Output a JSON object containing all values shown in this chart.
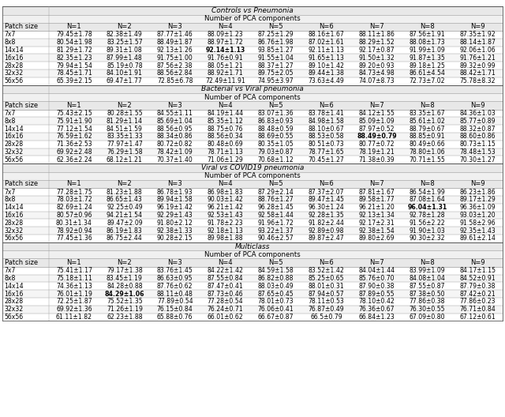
{
  "sections": [
    {
      "section_title": "Controls vs Pneumonia",
      "subsection_title": "Number of PCA components",
      "headers": [
        "Patch size",
        "N=1",
        "N=2",
        "N=3",
        "N=4",
        "N=5",
        "N=6",
        "N=7",
        "N=8",
        "N=9"
      ],
      "rows": [
        [
          "7x7",
          "79.45±1.78",
          "82.38±1.49",
          "87.77±1.46",
          "88.09±1.23",
          "87.25±1.29",
          "88.16±1.67",
          "88.11±1.86",
          "87.56±1.91",
          "87.35±1.92"
        ],
        [
          "8x8",
          "80.54±1.98",
          "83.25±1.57",
          "88.49±1.87",
          "88.97±1.72",
          "86.76±1.98",
          "87.02±1.61",
          "88.29±1.52",
          "88.08±1.73",
          "88.14±1.87"
        ],
        [
          "14x14",
          "81.29±1.72",
          "89.31±1.08",
          "92.13±1.26",
          "92.14±1.13",
          "93.85±1.27",
          "92.11±1.13",
          "92.17±0.87",
          "91.99±1.09",
          "92.06±1.06"
        ],
        [
          "16x16",
          "82.35±1.23",
          "87.99±1.48",
          "91.75±1.00",
          "91.76±0.91",
          "91.55±1.04",
          "91.65±1.13",
          "91.50±1.32",
          "91.87±1.35",
          "91.76±1.21"
        ],
        [
          "28x28",
          "79.94±1.54",
          "85.19±0.78",
          "87.56±2.38",
          "88.05±1.21",
          "88.37±1.27",
          "89.10±1.42",
          "89.20±0.93",
          "89.18±1.25",
          "89.32±0.99"
        ],
        [
          "32x32",
          "78.45±1.71",
          "84.10±1.91",
          "88.56±2.84",
          "88.92±1.71",
          "89.75±2.05",
          "89.44±1.38",
          "84.73±4.98",
          "86.61±4.54",
          "88.42±1.71"
        ],
        [
          "56x56",
          "65.39±2.15",
          "69.47±1.77",
          "72.85±6.78",
          "72.49±11.91",
          "74.95±3.97",
          "73.63±4.49",
          "74.07±8.73",
          "72.73±7.02",
          "75.78±8.32"
        ]
      ],
      "bold_row": 2,
      "bold_col": 4
    },
    {
      "section_title": "Bacterial vs Viral pneumonia",
      "subsection_title": "Number of PCA components",
      "headers": [
        "Patch size",
        "N=1",
        "N=2",
        "N=3",
        "N=4",
        "N=5",
        "N=6",
        "N=7",
        "N=8",
        "N=9"
      ],
      "rows": [
        [
          "7x7",
          "75.43±2.15",
          "80.28±1.55",
          "84.55±1.11",
          "84.19±1.44",
          "83.07±1.36",
          "83.78±1.41",
          "84.12±1.55",
          "83.35±1.67",
          "84.36±1.03"
        ],
        [
          "8x8",
          "75.91±1.90",
          "81.29±1.14",
          "85.69±1.04",
          "85.35±1.12",
          "86.83±0.93",
          "84.98±1.58",
          "85.09±1.09",
          "85.61±1.02",
          "85.77±0.89"
        ],
        [
          "14x14",
          "77.12±1.54",
          "84.51±1.59",
          "88.56±0.95",
          "88.75±0.76",
          "88.48±0.59",
          "88.10±0.67",
          "87.97±0.52",
          "88.79±0.67",
          "88.32±0.87"
        ],
        [
          "16x16",
          "76.59±1.62",
          "83.35±1.33",
          "88.34±0.86",
          "88.56±0.34",
          "88.69±0.55",
          "88.53±0.58",
          "88.49±0.79",
          "88.85±0.91",
          "88.60±0.86"
        ],
        [
          "28x28",
          "71.36±2.53",
          "77.97±1.47",
          "80.72±0.82",
          "80.48±0.69",
          "80.35±1.05",
          "80.51±0.73",
          "80.77±0.72",
          "80.49±0.66",
          "80.73±1.15"
        ],
        [
          "32x32",
          "69.92±2.48",
          "76.29±1.58",
          "78.42±1.09",
          "78.71±1.13",
          "79.03±0.87",
          "78.77±1.65",
          "78.19±1.21",
          "78.80±1.06",
          "78.48±1.53"
        ],
        [
          "56x56",
          "62.36±2.24",
          "68.12±1.21",
          "70.37±1.40",
          "71.06±1.29",
          "70.68±1.12",
          "70.45±1.27",
          "71.38±0.39",
          "70.71±1.55",
          "70.30±1.27"
        ]
      ],
      "bold_row": 3,
      "bold_col": 7
    },
    {
      "section_title": "Viral vs COVID19 pneumonia",
      "subsection_title": "Number of PCA components",
      "headers": [
        "Patch size",
        "N=1",
        "N=2",
        "N=3",
        "N=4",
        "N=5",
        "N=6",
        "N=7",
        "N=8",
        "N=9"
      ],
      "rows": [
        [
          "7x7",
          "77.28±1.75",
          "81.23±1.88",
          "86.78±1.93",
          "86.98±1.83",
          "87.29±2.14",
          "87.37±2.07",
          "87.81±1.67",
          "86.54±1.99",
          "86.23±1.86"
        ],
        [
          "8x8",
          "78.03±1.72",
          "86.65±1.43",
          "89.94±1.58",
          "90.03±1.42",
          "88.76±1.27",
          "89.47±1.45",
          "89.58±1.77",
          "87.08±1.64",
          "89.17±1.29"
        ],
        [
          "14x14",
          "82.69±1.24",
          "92.25±0.49",
          "96.19±1.42",
          "96.21±1.42",
          "96.28±1.45",
          "96.30±1.24",
          "96.21±1.20",
          "96.04±1.31",
          "96.36±1.09"
        ],
        [
          "16x16",
          "80.57±0.96",
          "94.21±1.54",
          "92.29±1.43",
          "92.53±1.43",
          "92.58±1.44",
          "92.28±1.35",
          "92.13±1.34",
          "92.78±1.28",
          "93.03±1.20"
        ],
        [
          "28x28",
          "80.31±1.34",
          "89.47±2.09",
          "91.80±2.12",
          "91.78±2.23",
          "91.96±1.72",
          "91.82±2.44",
          "92.17±2.31",
          "91.56±2.22",
          "91.58±2.96"
        ],
        [
          "32x32",
          "78.92±0.94",
          "86.19±1.83",
          "92.38±1.33",
          "92.18±1.13",
          "93.22±1.37",
          "92.89±0.98",
          "92.38±1.54",
          "91.90±1.03",
          "92.35±1.43"
        ],
        [
          "56x56",
          "77.45±1.36",
          "86.75±2.44",
          "90.28±2.15",
          "89.98±1.88",
          "90.46±2.57",
          "89.87±2.47",
          "89.80±2.69",
          "90.30±2.32",
          "89.61±2.14"
        ]
      ],
      "bold_row": 2,
      "bold_col": 8
    },
    {
      "section_title": "Multiclass",
      "subsection_title": "Number of PCA components",
      "headers": [
        "Patch size",
        "N=1",
        "N=2",
        "N=3",
        "N=4",
        "N=5",
        "N=6",
        "N=7",
        "N=8",
        "N=9"
      ],
      "rows": [
        [
          "7x7",
          "75.41±1.17",
          "79.17±1.38",
          "83.76±1.45",
          "84.22±1.42",
          "84.59±1.58",
          "83.52±1.42",
          "84.04±1.44",
          "83.99±1.09",
          "84.17±1.15"
        ],
        [
          "8x8",
          "75.18±1.11",
          "83.45±1.19",
          "86.63±0.95",
          "87.55±0.84",
          "86.82±0.88",
          "85.25±0.65",
          "85.76±0.70",
          "84.08±1.04",
          "84.52±0.91"
        ],
        [
          "14x14",
          "74.36±1.13",
          "84.28±0.88",
          "87.76±0.62",
          "87.47±0.41",
          "88.03±0.49",
          "88.01±0.31",
          "87.90±0.38",
          "87.55±0.87",
          "87.79±0.38"
        ],
        [
          "16x16",
          "76.01±1.19",
          "84.29±1.06",
          "88.11±0.48",
          "87.73±0.46",
          "87.65±0.45",
          "87.94±0.57",
          "87.89±0.55",
          "87.38±0.50",
          "87.42±0.21"
        ],
        [
          "28x28",
          "72.25±1.87",
          "75.52±1.35",
          "77.89±0.54",
          "77.28±0.54",
          "78.01±0.73",
          "78.11±0.53",
          "78.10±0.42",
          "77.86±0.38",
          "77.86±0.23"
        ],
        [
          "32x32",
          "69.92±1.36",
          "71.26±1.19",
          "76.15±0.84",
          "76.24±0.71",
          "76.06±0.41",
          "76.87±0.49",
          "76.36±0.67",
          "76.30±0.55",
          "76.71±0.84"
        ],
        [
          "56x56",
          "61.11±1.82",
          "62.23±1.88",
          "65.88±0.76",
          "66.01±0.62",
          "66.67±0.87",
          "66.5±0.79",
          "66.84±1.23",
          "67.09±0.80",
          "67.12±0.61"
        ]
      ],
      "bold_row": 3,
      "bold_col": 2
    }
  ]
}
